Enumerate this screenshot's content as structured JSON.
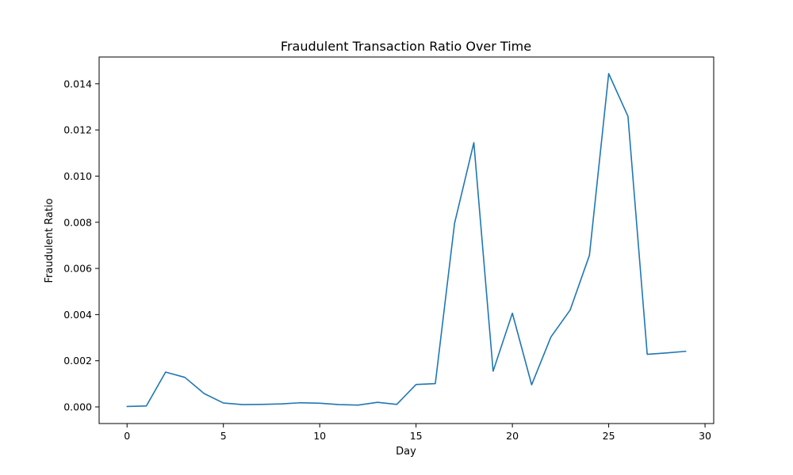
{
  "chart_data": {
    "type": "line",
    "title": "Fraudulent Transaction Ratio Over Time",
    "xlabel": "Day",
    "ylabel": "Fraudulent Ratio",
    "xlim": [
      -1.45,
      30.45
    ],
    "ylim": [
      -0.00072,
      0.01516
    ],
    "xticks": [
      0,
      5,
      10,
      15,
      20,
      25,
      30
    ],
    "xtick_labels": [
      "0",
      "5",
      "10",
      "15",
      "20",
      "25",
      "30"
    ],
    "yticks": [
      0.0,
      0.002,
      0.004,
      0.006,
      0.008,
      0.01,
      0.012,
      0.014
    ],
    "ytick_labels": [
      "0.000",
      "0.002",
      "0.004",
      "0.006",
      "0.008",
      "0.010",
      "0.012",
      "0.014"
    ],
    "grid": false,
    "line_color": "#1f77b4",
    "series": [
      {
        "x": [
          0,
          1,
          2,
          3,
          4,
          5,
          6,
          7,
          8,
          9,
          10,
          11,
          12,
          13,
          14,
          15,
          16,
          17,
          18,
          19,
          20,
          21,
          22,
          23,
          24,
          25,
          26,
          27,
          28,
          29
        ],
        "values": [
          2e-05,
          4e-05,
          0.00151,
          0.00128,
          0.00058,
          0.00017,
          0.0001,
          0.00011,
          0.00013,
          0.00018,
          0.00016,
          0.0001,
          8e-05,
          0.0002,
          0.00011,
          0.00097,
          0.00101,
          0.00796,
          0.01145,
          0.00155,
          0.00406,
          0.00096,
          0.00303,
          0.0042,
          0.00657,
          0.01444,
          0.01259,
          0.00228,
          0.00234,
          0.00241
        ]
      }
    ]
  }
}
